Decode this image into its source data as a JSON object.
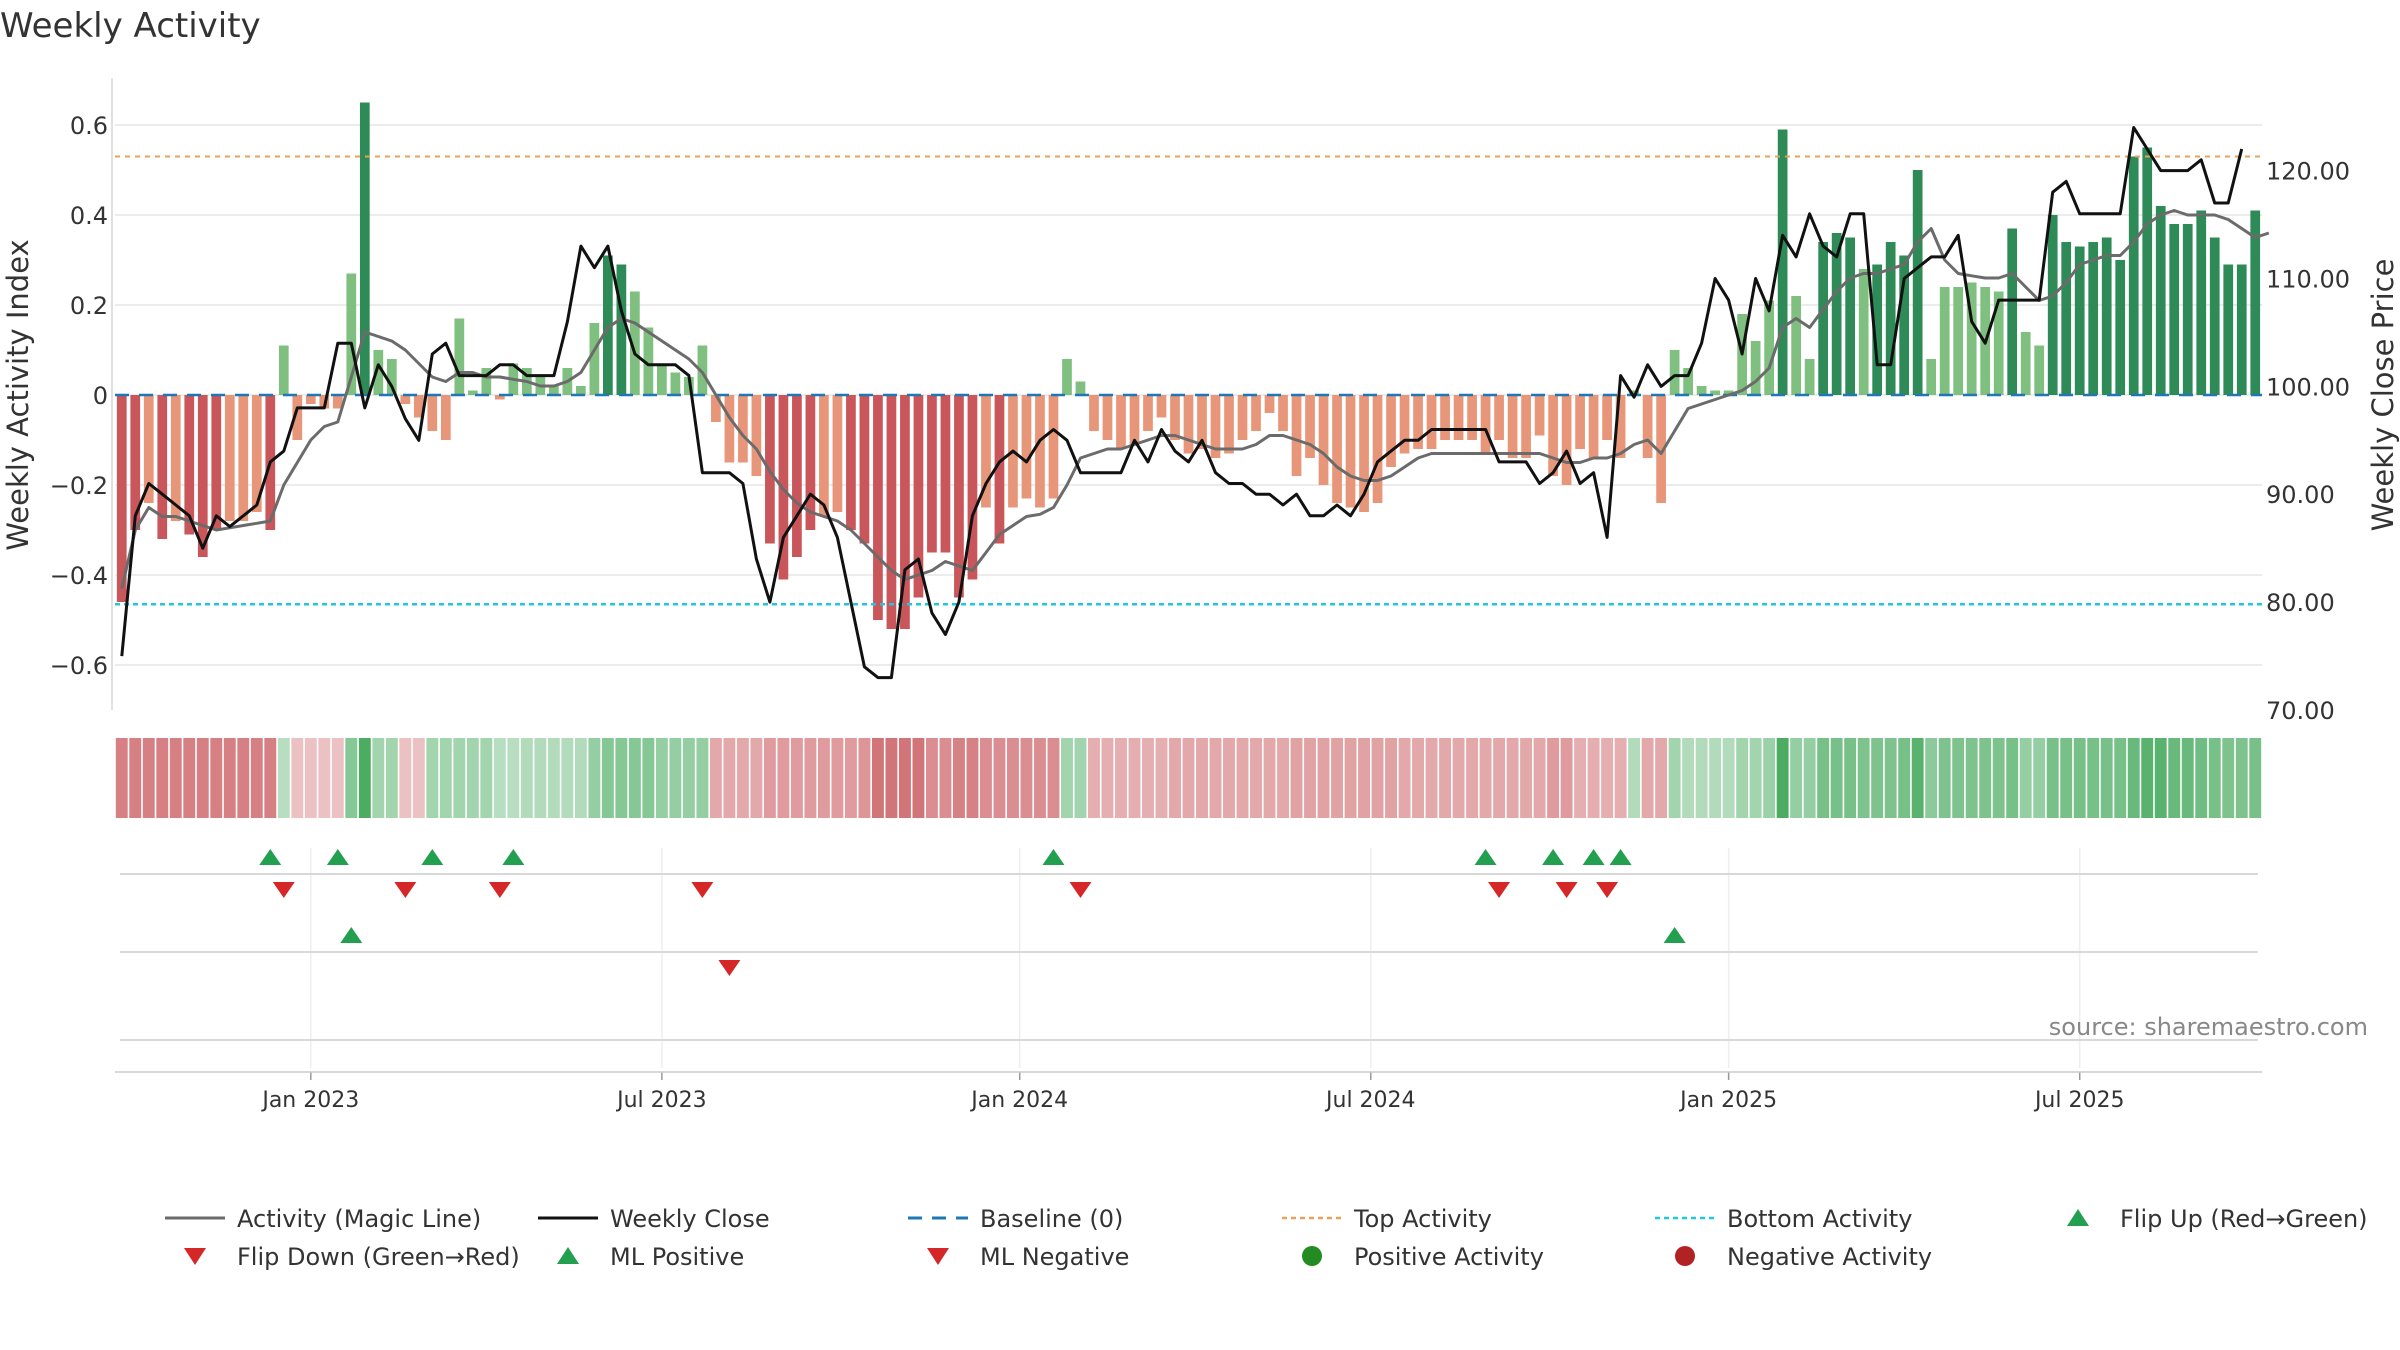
{
  "title": "Weekly Activity",
  "source": "source: sharemaestro.com",
  "y_left_label": "Weekly Activity Index",
  "y_right_label": "Weekly Close Price",
  "colors": {
    "pos_dark": "#2e8b57",
    "pos_light": "#7fbf7f",
    "neg_dark": "#c9565a",
    "neg_light": "#e8967a",
    "magic_line": "#6b6b6b",
    "close": "#111111",
    "baseline": "#1f77b4",
    "top": "#e8a15a",
    "bottom": "#1fc8e0",
    "up_marker": "#22a050",
    "down_marker": "#d62728",
    "pos_dot": "#228b22",
    "neg_dot": "#b22222",
    "grid": "#e6e6e6"
  },
  "legend": [
    {
      "label": "Activity (Magic Line)",
      "kind": "line",
      "color": "#6b6b6b"
    },
    {
      "label": "Weekly Close",
      "kind": "line",
      "color": "#111111"
    },
    {
      "label": "Baseline (0)",
      "kind": "dashed",
      "color": "#1f77b4"
    },
    {
      "label": "Top Activity",
      "kind": "dotted",
      "color": "#e8a15a"
    },
    {
      "label": "Bottom Activity",
      "kind": "dotted",
      "color": "#1fc8e0"
    },
    {
      "label": "Flip Up (Red→Green)",
      "kind": "tri-up",
      "color": "#22a050"
    },
    {
      "label": "Flip Down (Green→Red)",
      "kind": "tri-down",
      "color": "#d62728"
    },
    {
      "label": "ML Positive",
      "kind": "tri-up",
      "color": "#22a050"
    },
    {
      "label": "ML Negative",
      "kind": "tri-down",
      "color": "#d62728"
    },
    {
      "label": "Positive Activity",
      "kind": "dot",
      "color": "#228b22"
    },
    {
      "label": "Negative Activity",
      "kind": "dot",
      "color": "#b22222"
    }
  ],
  "chart_data": {
    "type": "bar",
    "x_ticks": [
      {
        "label": "Jan 2023",
        "week": 14.5
      },
      {
        "label": "Jul 2023",
        "week": 40.5
      },
      {
        "label": "Jan 2024",
        "week": 67
      },
      {
        "label": "Jul 2024",
        "week": 93
      },
      {
        "label": "Jan 2025",
        "week": 119.5
      },
      {
        "label": "Jul 2025",
        "week": 145.5
      }
    ],
    "y_left": {
      "min": -0.7,
      "max": 0.7,
      "ticks": [
        {
          "v": 0.6,
          "l": "0.6"
        },
        {
          "v": 0.4,
          "l": "0.4"
        },
        {
          "v": 0.2,
          "l": "0.2"
        },
        {
          "v": 0,
          "l": "0"
        },
        {
          "v": -0.2,
          "l": "−0.2"
        },
        {
          "v": -0.4,
          "l": "−0.4"
        },
        {
          "v": -0.6,
          "l": "−0.6"
        }
      ]
    },
    "y_right": {
      "min": 70,
      "max": 128.4,
      "ticks": [
        {
          "v": 120,
          "l": "120.00"
        },
        {
          "v": 110,
          "l": "110.00"
        },
        {
          "v": 100,
          "l": "100.00"
        },
        {
          "v": 90,
          "l": "90.00"
        },
        {
          "v": 80,
          "l": "80.00"
        },
        {
          "v": 70,
          "l": "70.00"
        }
      ]
    },
    "top_activity": 0.53,
    "bottom_activity": -0.465,
    "baseline": 0,
    "activity": [
      -0.46,
      -0.3,
      -0.24,
      -0.32,
      -0.28,
      -0.31,
      -0.36,
      -0.3,
      -0.28,
      -0.28,
      -0.26,
      -0.3,
      0.11,
      -0.1,
      -0.02,
      -0.03,
      -0.03,
      0.27,
      0.65,
      0.1,
      0.08,
      -0.02,
      -0.05,
      -0.08,
      -0.1,
      0.17,
      0.01,
      0.06,
      -0.01,
      0.07,
      0.06,
      0.04,
      0.02,
      0.06,
      0.02,
      0.16,
      0.31,
      0.29,
      0.23,
      0.15,
      0.07,
      0.05,
      0.04,
      0.11,
      -0.06,
      -0.15,
      -0.15,
      -0.18,
      -0.33,
      -0.41,
      -0.36,
      -0.3,
      -0.27,
      -0.26,
      -0.3,
      -0.33,
      -0.5,
      -0.52,
      -0.52,
      -0.45,
      -0.35,
      -0.35,
      -0.45,
      -0.41,
      -0.25,
      -0.33,
      -0.25,
      -0.23,
      -0.25,
      -0.23,
      0.08,
      0.03,
      -0.08,
      -0.1,
      -0.12,
      -0.11,
      -0.08,
      -0.05,
      -0.1,
      -0.13,
      -0.12,
      -0.14,
      -0.13,
      -0.1,
      -0.08,
      -0.04,
      -0.08,
      -0.18,
      -0.14,
      -0.2,
      -0.24,
      -0.25,
      -0.26,
      -0.24,
      -0.16,
      -0.13,
      -0.12,
      -0.12,
      -0.1,
      -0.1,
      -0.1,
      -0.13,
      -0.1,
      -0.14,
      -0.14,
      -0.09,
      -0.18,
      -0.2,
      -0.12,
      -0.14,
      -0.1,
      -0.14,
      0.01,
      -0.14,
      -0.24,
      0.1,
      0.06,
      0.02,
      0.01,
      0.01,
      0.18,
      0.12,
      0.21,
      0.59,
      0.22,
      0.08,
      0.34,
      0.36,
      0.35,
      0.28,
      0.29,
      0.34,
      0.31,
      0.5,
      0.08,
      0.24,
      0.24,
      0.25,
      0.24,
      0.23,
      0.37,
      0.14,
      0.11,
      0.4,
      0.34,
      0.33,
      0.34,
      0.35,
      0.3,
      0.53,
      0.55,
      0.42,
      0.38,
      0.38,
      0.41,
      0.35,
      0.29,
      0.29,
      0.41
    ],
    "close": [
      75,
      88,
      91,
      90,
      89,
      88,
      85,
      88,
      87,
      88,
      89,
      93,
      94,
      98,
      98,
      98,
      104,
      104,
      98,
      102,
      100,
      97,
      95,
      103,
      104,
      101,
      101,
      101,
      102,
      102,
      101,
      101,
      101,
      106,
      113,
      111,
      113,
      107,
      103,
      102,
      102,
      102,
      101,
      92,
      92,
      92,
      91,
      84,
      80,
      86,
      88,
      90,
      89,
      86,
      80,
      74,
      73,
      73,
      83,
      84,
      79,
      77,
      80,
      88,
      91,
      93,
      94,
      93,
      95,
      96,
      95,
      92,
      92,
      92,
      92,
      95,
      93,
      96,
      94,
      93,
      95,
      92,
      91,
      91,
      90,
      90,
      89,
      90,
      88,
      88,
      89,
      88,
      90,
      93,
      94,
      95,
      95,
      96,
      96,
      96,
      96,
      96,
      93,
      93,
      93,
      91,
      92,
      94,
      91,
      92,
      86,
      101,
      99,
      102,
      100,
      101,
      101,
      104,
      110,
      108,
      103,
      110,
      107,
      114,
      112,
      116,
      113,
      112,
      116,
      116,
      102,
      102,
      110,
      111,
      112,
      112,
      114,
      106,
      104,
      108,
      108,
      108,
      108,
      118,
      119,
      116,
      116,
      116,
      116,
      124,
      122,
      120,
      120,
      120,
      121,
      117,
      117,
      122
    ],
    "magic_line": [
      -0.43,
      -0.3,
      -0.25,
      -0.27,
      -0.27,
      -0.28,
      -0.29,
      -0.3,
      -0.295,
      -0.29,
      -0.285,
      -0.28,
      -0.2,
      -0.15,
      -0.1,
      -0.07,
      -0.06,
      0.04,
      0.14,
      0.13,
      0.12,
      0.1,
      0.07,
      0.04,
      0.03,
      0.05,
      0.05,
      0.04,
      0.04,
      0.035,
      0.03,
      0.02,
      0.02,
      0.03,
      0.05,
      0.1,
      0.15,
      0.17,
      0.16,
      0.14,
      0.12,
      0.1,
      0.08,
      0.05,
      0.0,
      -0.05,
      -0.09,
      -0.12,
      -0.17,
      -0.21,
      -0.24,
      -0.26,
      -0.27,
      -0.28,
      -0.3,
      -0.33,
      -0.36,
      -0.39,
      -0.41,
      -0.4,
      -0.39,
      -0.37,
      -0.38,
      -0.39,
      -0.35,
      -0.31,
      -0.29,
      -0.27,
      -0.265,
      -0.25,
      -0.2,
      -0.14,
      -0.13,
      -0.12,
      -0.12,
      -0.11,
      -0.1,
      -0.09,
      -0.09,
      -0.1,
      -0.11,
      -0.12,
      -0.12,
      -0.12,
      -0.11,
      -0.09,
      -0.09,
      -0.1,
      -0.11,
      -0.13,
      -0.16,
      -0.18,
      -0.19,
      -0.19,
      -0.18,
      -0.16,
      -0.14,
      -0.13,
      -0.13,
      -0.13,
      -0.13,
      -0.13,
      -0.13,
      -0.13,
      -0.13,
      -0.13,
      -0.14,
      -0.15,
      -0.15,
      -0.14,
      -0.14,
      -0.13,
      -0.11,
      -0.1,
      -0.13,
      -0.08,
      -0.03,
      -0.02,
      -0.01,
      0.0,
      0.01,
      0.03,
      0.06,
      0.15,
      0.17,
      0.15,
      0.19,
      0.23,
      0.26,
      0.27,
      0.27,
      0.28,
      0.29,
      0.34,
      0.37,
      0.3,
      0.27,
      0.265,
      0.26,
      0.26,
      0.27,
      0.24,
      0.21,
      0.22,
      0.25,
      0.29,
      0.3,
      0.31,
      0.31,
      0.34,
      0.38,
      0.4,
      0.41,
      0.4,
      0.4,
      0.4,
      0.39,
      0.37,
      0.35,
      0.36
    ],
    "ribbon": [
      -0.66,
      -0.66,
      -0.66,
      -0.66,
      -0.66,
      -0.66,
      -0.66,
      -0.66,
      -0.66,
      -0.66,
      -0.66,
      -0.66,
      0.15,
      -0.15,
      -0.15,
      -0.15,
      -0.15,
      0.5,
      0.9,
      0.3,
      0.3,
      -0.15,
      -0.15,
      0.3,
      0.3,
      0.3,
      0.3,
      0.3,
      0.15,
      0.15,
      0.2,
      0.2,
      0.2,
      0.2,
      0.2,
      0.4,
      0.5,
      0.5,
      0.5,
      0.5,
      0.4,
      0.4,
      0.4,
      0.4,
      -0.35,
      -0.35,
      -0.35,
      -0.35,
      -0.45,
      -0.45,
      -0.45,
      -0.45,
      -0.45,
      -0.45,
      -0.45,
      -0.5,
      -0.75,
      -0.75,
      -0.75,
      -0.75,
      -0.55,
      -0.55,
      -0.65,
      -0.65,
      -0.55,
      -0.55,
      -0.55,
      -0.55,
      -0.55,
      -0.55,
      0.3,
      0.3,
      -0.3,
      -0.3,
      -0.3,
      -0.3,
      -0.3,
      -0.3,
      -0.35,
      -0.35,
      -0.35,
      -0.35,
      -0.35,
      -0.35,
      -0.35,
      -0.35,
      -0.35,
      -0.4,
      -0.4,
      -0.4,
      -0.4,
      -0.4,
      -0.4,
      -0.4,
      -0.4,
      -0.35,
      -0.35,
      -0.35,
      -0.35,
      -0.35,
      -0.35,
      -0.35,
      -0.35,
      -0.35,
      -0.35,
      -0.35,
      -0.45,
      -0.45,
      -0.3,
      -0.3,
      -0.3,
      -0.3,
      0.2,
      -0.35,
      -0.35,
      0.3,
      0.2,
      0.2,
      0.2,
      0.2,
      0.3,
      0.3,
      0.35,
      0.9,
      0.4,
      0.4,
      0.6,
      0.6,
      0.6,
      0.55,
      0.55,
      0.55,
      0.6,
      0.8,
      0.45,
      0.55,
      0.55,
      0.55,
      0.55,
      0.55,
      0.6,
      0.4,
      0.4,
      0.6,
      0.6,
      0.6,
      0.6,
      0.6,
      0.6,
      0.7,
      0.8,
      0.8,
      0.7,
      0.7,
      0.65,
      0.6,
      0.55,
      0.55,
      0.6
    ],
    "flip_up": [
      11,
      16,
      23,
      29,
      69,
      101,
      106,
      109,
      111
    ],
    "flip_down": [
      12,
      21,
      28,
      43,
      71,
      102,
      107,
      110
    ],
    "ml_positive": [
      17,
      115
    ],
    "ml_negative": [
      45
    ]
  }
}
